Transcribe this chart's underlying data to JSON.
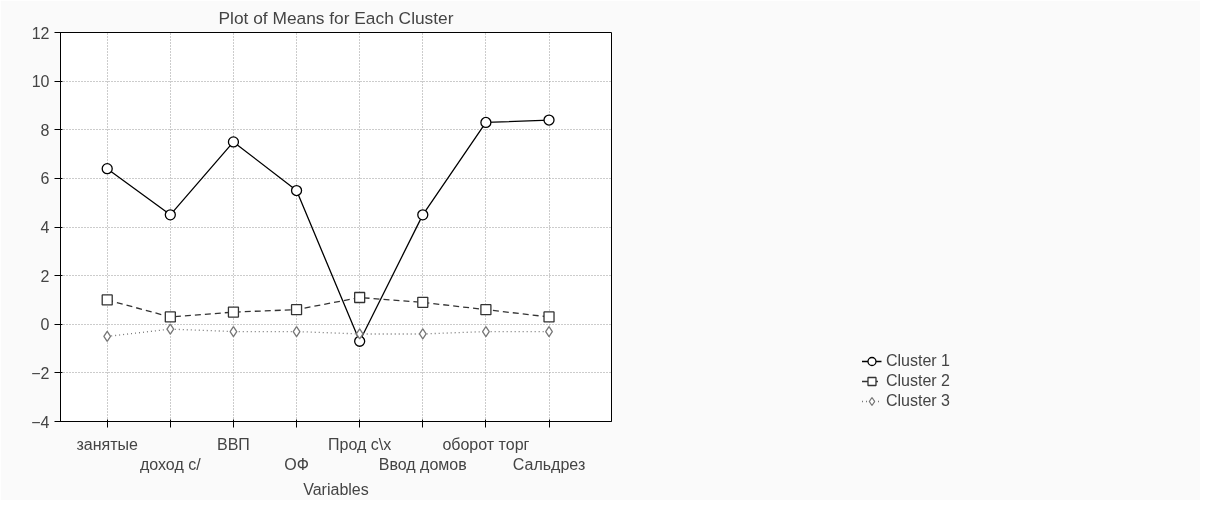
{
  "chart_data": {
    "type": "line",
    "title": "Plot of Means for Each Cluster",
    "xlabel": "Variables",
    "categories": [
      "занятые",
      "доход с/",
      "ВВП",
      "ОФ",
      "Прод с\\х",
      "Ввод домов",
      "оборот торг",
      "Сальдрез"
    ],
    "series": [
      {
        "name": "Cluster 1",
        "color": "#000000",
        "marker": "circle",
        "line_style": "solid",
        "values": [
          6.4,
          4.5,
          7.5,
          5.5,
          -0.7,
          4.5,
          8.3,
          8.4
        ]
      },
      {
        "name": "Cluster 2",
        "color": "#333333",
        "marker": "square",
        "line_style": "dashed",
        "values": [
          1.0,
          0.3,
          0.5,
          0.6,
          1.1,
          0.9,
          0.6,
          0.3
        ]
      },
      {
        "name": "Cluster 3",
        "color": "#777777",
        "marker": "diamond",
        "line_style": "dotted",
        "values": [
          -0.5,
          -0.2,
          -0.3,
          -0.3,
          -0.4,
          -0.4,
          -0.3,
          -0.3
        ]
      }
    ],
    "ylim": [
      -4,
      12
    ],
    "yticks": [
      -4,
      -2,
      0,
      2,
      4,
      6,
      8,
      10,
      12
    ],
    "grid": true,
    "legend": "bottom right"
  }
}
